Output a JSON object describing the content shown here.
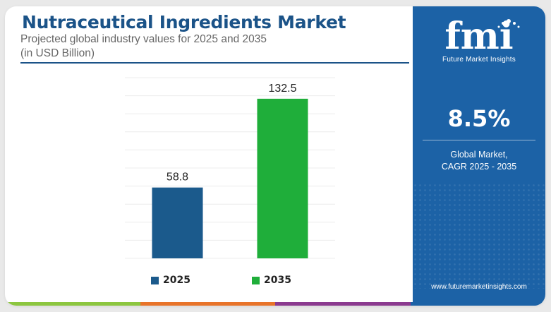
{
  "header": {
    "title": "Nutraceutical Ingredients Market",
    "subtitle": "Projected global industry values for 2025 and 2035",
    "unit": "(in USD Billion)"
  },
  "chart_data": {
    "type": "bar",
    "categories": [
      "2025",
      "2035"
    ],
    "values": [
      58.8,
      132.5
    ],
    "value_labels": [
      "58.8",
      "132.5"
    ],
    "colors": [
      "#1b5a8c",
      "#1fae3a"
    ],
    "ylim": [
      0,
      150
    ],
    "grid": true,
    "legend_position": "bottom"
  },
  "legend": [
    {
      "label": "2025",
      "color": "#1b5a8c"
    },
    {
      "label": "2035",
      "color": "#1fae3a"
    }
  ],
  "side_panel": {
    "logo_letters": "fmi",
    "logo_name": "Future Market Insights",
    "cagr_value": "8.5%",
    "cagr_label_line1": "Global Market,",
    "cagr_label_line2": "CAGR 2025 - 2035",
    "website": "www.futuremarketinsights.com",
    "background_color": "#1c62a6"
  },
  "bottom_bar_colors": [
    "#8cc63f",
    "#e8742a",
    "#8b3a8f",
    "#1c62a6"
  ]
}
